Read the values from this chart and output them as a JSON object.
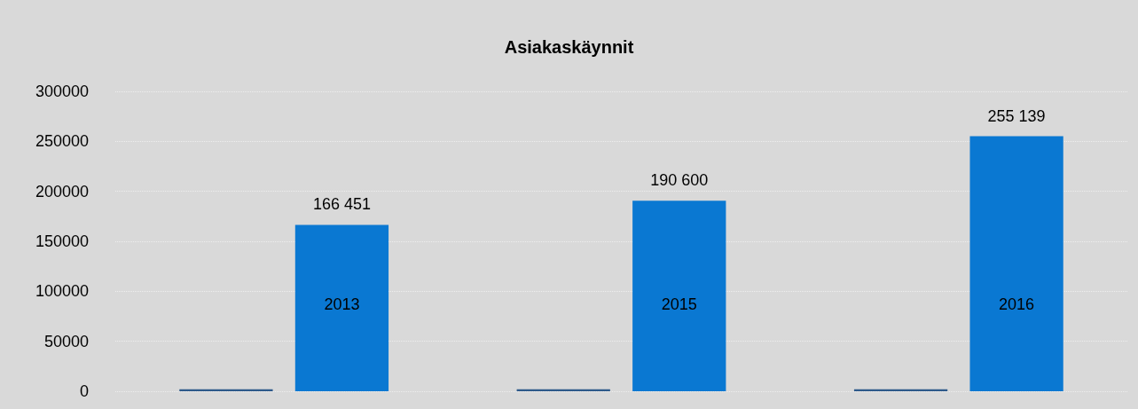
{
  "chart_data": {
    "type": "bar",
    "title": "Asiakaskäynnit",
    "categories": [
      null,
      null,
      null
    ],
    "series": [
      {
        "color": "#2e5a8a",
        "values": [
          2013,
          2015,
          2016
        ]
      },
      {
        "color": "#0a78d2",
        "values": [
          166451,
          190600,
          255139
        ],
        "value_labels": [
          "166 451",
          "190 600",
          "255 139"
        ]
      }
    ],
    "annotations": [
      "2013",
      "2015",
      "2016"
    ],
    "ylim": [
      0,
      300000
    ],
    "yticks": [
      0,
      50000,
      100000,
      150000,
      200000,
      250000,
      300000
    ],
    "grid": "y"
  }
}
